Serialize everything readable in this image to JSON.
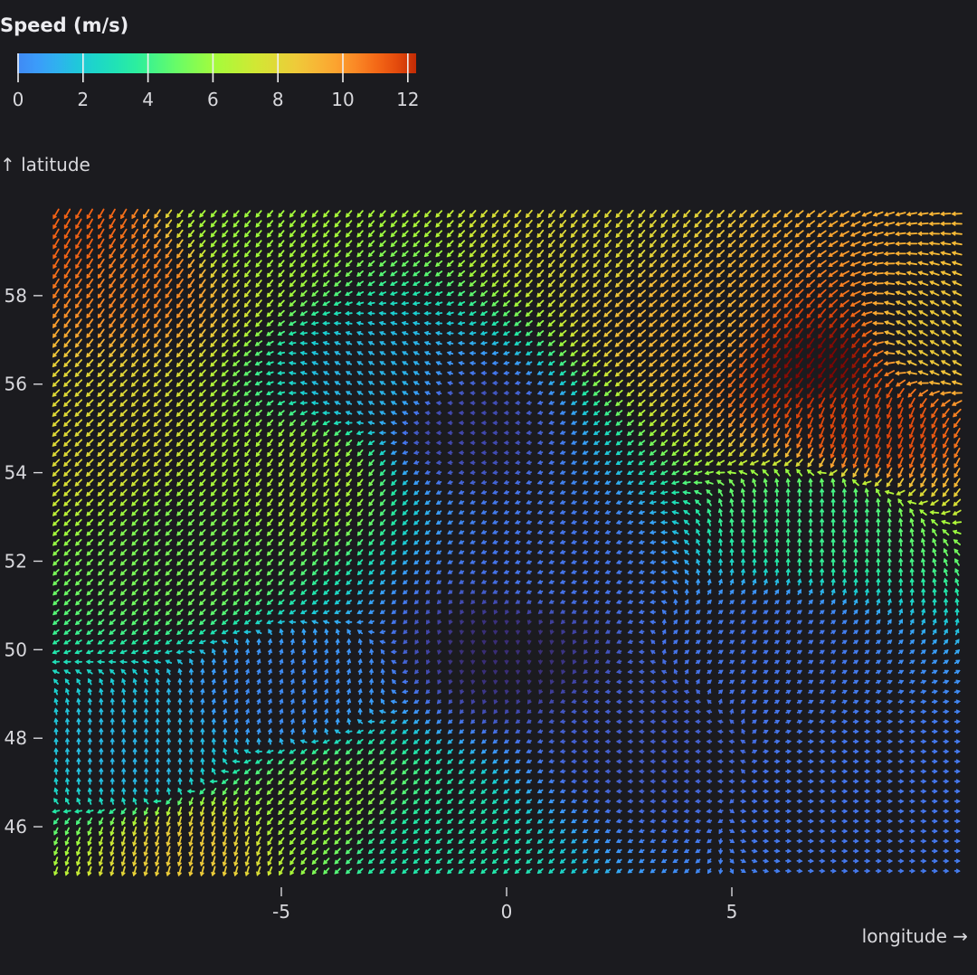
{
  "chart_data": {
    "type": "vector_field",
    "title": "",
    "xlabel": "longitude →",
    "ylabel": "↑ latitude",
    "xlim": [
      -10,
      10
    ],
    "ylim": [
      45,
      60
    ],
    "x_ticks": [
      -5,
      0,
      5
    ],
    "y_ticks": [
      46,
      48,
      50,
      52,
      54,
      56,
      58
    ],
    "grid": false,
    "legend": {
      "title": "Speed (m/s)",
      "placement": "top-left",
      "domain": [
        0,
        12.2
      ],
      "ticks": [
        0,
        2,
        4,
        6,
        8,
        10,
        12
      ],
      "colormap": "turbo"
    },
    "grid_spacing": {
      "lon": 0.25,
      "lat": 0.25
    },
    "speed_regions_note_values": {
      "max_speed": 12.2,
      "min_speed": 0
    },
    "sampled_vectors": [
      {
        "lon": -9.5,
        "lat": 59.5,
        "speed": 11.0,
        "dir_deg": 210
      },
      {
        "lon": -8.0,
        "lat": 58.5,
        "speed": 10.5,
        "dir_deg": 215
      },
      {
        "lon": -6.0,
        "lat": 59.5,
        "speed": 7.0,
        "dir_deg": 220
      },
      {
        "lon": -9.0,
        "lat": 55.0,
        "speed": 8.5,
        "dir_deg": 225
      },
      {
        "lon": -7.0,
        "lat": 52.0,
        "speed": 6.5,
        "dir_deg": 225
      },
      {
        "lon": -4.5,
        "lat": 54.0,
        "speed": 7.5,
        "dir_deg": 215
      },
      {
        "lon": -3.0,
        "lat": 56.0,
        "speed": 3.5,
        "dir_deg": 300
      },
      {
        "lon": -1.0,
        "lat": 55.0,
        "speed": 1.0,
        "dir_deg": 270
      },
      {
        "lon": 1.0,
        "lat": 52.0,
        "speed": 2.0,
        "dir_deg": 250
      },
      {
        "lon": 0.0,
        "lat": 50.0,
        "speed": 0.5,
        "dir_deg": 180
      },
      {
        "lon": 2.0,
        "lat": 59.5,
        "speed": 8.5,
        "dir_deg": 220
      },
      {
        "lon": 4.0,
        "lat": 57.5,
        "speed": 9.5,
        "dir_deg": 230
      },
      {
        "lon": 7.0,
        "lat": 56.5,
        "speed": 12.2,
        "dir_deg": 215
      },
      {
        "lon": 8.0,
        "lat": 55.0,
        "speed": 11.5,
        "dir_deg": 200
      },
      {
        "lon": 9.5,
        "lat": 57.0,
        "speed": 9.0,
        "dir_deg": 300
      },
      {
        "lon": 7.0,
        "lat": 53.0,
        "speed": 5.5,
        "dir_deg": 0
      },
      {
        "lon": 6.0,
        "lat": 50.0,
        "speed": 2.0,
        "dir_deg": 60
      },
      {
        "lon": 8.0,
        "lat": 47.0,
        "speed": 2.0,
        "dir_deg": 90
      },
      {
        "lon": -8.0,
        "lat": 47.5,
        "speed": 3.5,
        "dir_deg": 0
      },
      {
        "lon": -7.0,
        "lat": 45.5,
        "speed": 9.0,
        "dir_deg": 195
      },
      {
        "lon": -4.0,
        "lat": 46.5,
        "speed": 7.0,
        "dir_deg": 225
      },
      {
        "lon": -2.0,
        "lat": 45.5,
        "speed": 5.0,
        "dir_deg": 230
      },
      {
        "lon": -5.0,
        "lat": 49.0,
        "speed": 2.5,
        "dir_deg": 20
      },
      {
        "lon": 3.0,
        "lat": 48.0,
        "speed": 1.5,
        "dir_deg": 270
      }
    ]
  }
}
